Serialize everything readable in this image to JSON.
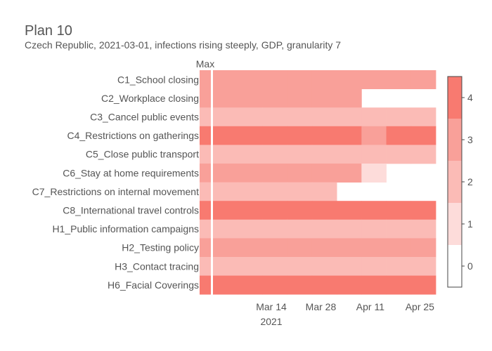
{
  "chart_data": {
    "type": "heatmap",
    "title": "Plan 10",
    "subtitle": "Czech Republic, 2021-03-01, infections rising steeply, GDP, granularity 7",
    "max_column_label": "Max",
    "x_ticks": [
      "Mar 14",
      "Mar 28",
      "Apr 11",
      "Apr 25"
    ],
    "x_tick_year": "2021",
    "week_starts": [
      "2021-03-01",
      "2021-03-08",
      "2021-03-15",
      "2021-03-22",
      "2021-03-29",
      "2021-04-05",
      "2021-04-12",
      "2021-04-19",
      "2021-04-26"
    ],
    "rows": [
      {
        "label": "C1_School closing",
        "max": 3,
        "values": [
          3,
          3,
          3,
          3,
          3,
          3,
          3,
          3,
          3
        ]
      },
      {
        "label": "C2_Workplace closing",
        "max": 3,
        "values": [
          3,
          3,
          3,
          3,
          3,
          3,
          null,
          null,
          null
        ]
      },
      {
        "label": "C3_Cancel public events",
        "max": 2,
        "values": [
          2,
          2,
          2,
          2,
          2,
          2,
          2,
          2,
          2
        ]
      },
      {
        "label": "C4_Restrictions on gatherings",
        "max": 4,
        "values": [
          4,
          4,
          4,
          4,
          4,
          4,
          3,
          4,
          4
        ]
      },
      {
        "label": "C5_Close public transport",
        "max": 2,
        "values": [
          2,
          2,
          2,
          2,
          2,
          2,
          2,
          2,
          2
        ]
      },
      {
        "label": "C6_Stay at home requirements",
        "max": 3,
        "values": [
          3,
          3,
          3,
          3,
          3,
          3,
          1,
          null,
          null
        ]
      },
      {
        "label": "C7_Restrictions on internal movement",
        "max": 2,
        "values": [
          2,
          2,
          2,
          2,
          2,
          null,
          null,
          null,
          null
        ]
      },
      {
        "label": "C8_International travel controls",
        "max": 4,
        "values": [
          4,
          4,
          4,
          4,
          4,
          4,
          4,
          4,
          4
        ]
      },
      {
        "label": "H1_Public information campaigns",
        "max": 2,
        "values": [
          2,
          2,
          2,
          2,
          2,
          2,
          2,
          2,
          2
        ]
      },
      {
        "label": "H2_Testing policy",
        "max": 3,
        "values": [
          3,
          3,
          3,
          3,
          3,
          3,
          3,
          3,
          3
        ]
      },
      {
        "label": "H3_Contact tracing",
        "max": 2,
        "values": [
          2,
          2,
          2,
          2,
          2,
          2,
          2,
          2,
          2
        ]
      },
      {
        "label": "H6_Facial Coverings",
        "max": 4,
        "values": [
          4,
          4,
          4,
          4,
          4,
          4,
          4,
          4,
          4
        ]
      }
    ],
    "colorbar": {
      "ticks": [
        0,
        1,
        2,
        3,
        4
      ],
      "range": [
        -0.5,
        4.5
      ],
      "colors": [
        "#ffffff",
        "#fddcda",
        "#fbbbb6",
        "#f9a099",
        "#f87a70"
      ]
    }
  }
}
